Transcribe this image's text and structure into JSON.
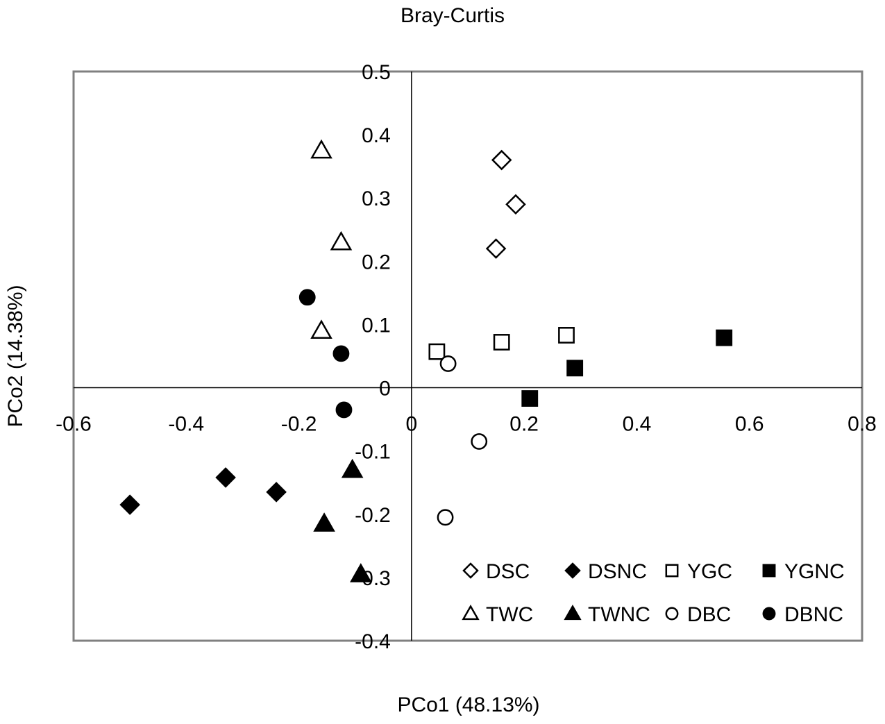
{
  "chart_data": {
    "type": "scatter",
    "title": "Bray-Curtis",
    "xlabel": "PCo1 (48.13%)",
    "ylabel": "PCo2 (14.38%)",
    "xlim": [
      -0.6,
      0.8
    ],
    "ylim": [
      -0.4,
      0.5
    ],
    "xticks": [
      -0.6,
      -0.4,
      -0.2,
      0,
      0.2,
      0.4,
      0.6,
      0.8
    ],
    "xtick_labels": [
      "-0.6",
      "-0.4",
      "-0.2",
      "0",
      "0.2",
      "0.4",
      "0.6",
      "0.8"
    ],
    "yticks": [
      0.5,
      0.4,
      0.3,
      0.2,
      0.1,
      0,
      -0.1,
      -0.2,
      -0.3,
      -0.4
    ],
    "ytick_labels": [
      "0.5",
      "0.4",
      "0.3",
      "0.2",
      "0.1",
      "0",
      "-0.1",
      "-0.2",
      "-0.3",
      "-0.4"
    ],
    "grid": false,
    "legend_position": "bottom-right",
    "series": [
      {
        "name": "DSC",
        "marker": "diamond",
        "filled": false,
        "points": [
          [
            0.16,
            0.36
          ],
          [
            0.185,
            0.29
          ],
          [
            0.15,
            0.22
          ]
        ]
      },
      {
        "name": "DSNC",
        "marker": "diamond",
        "filled": true,
        "points": [
          [
            -0.5,
            -0.185
          ],
          [
            -0.33,
            -0.142
          ],
          [
            -0.24,
            -0.165
          ]
        ]
      },
      {
        "name": "YGC",
        "marker": "square",
        "filled": false,
        "points": [
          [
            0.045,
            0.057
          ],
          [
            0.16,
            0.072
          ],
          [
            0.275,
            0.083
          ]
        ]
      },
      {
        "name": "YGNC",
        "marker": "square",
        "filled": true,
        "points": [
          [
            0.555,
            0.079
          ],
          [
            0.29,
            0.031
          ],
          [
            0.21,
            -0.017
          ]
        ]
      },
      {
        "name": "TWC",
        "marker": "triangle",
        "filled": false,
        "points": [
          [
            -0.16,
            0.375
          ],
          [
            -0.125,
            0.23
          ],
          [
            -0.16,
            0.09
          ]
        ]
      },
      {
        "name": "TWNC",
        "marker": "triangle",
        "filled": true,
        "points": [
          [
            -0.105,
            -0.13
          ],
          [
            -0.155,
            -0.215
          ],
          [
            -0.09,
            -0.295
          ]
        ]
      },
      {
        "name": "DBC",
        "marker": "circle",
        "filled": false,
        "points": [
          [
            0.065,
            0.038
          ],
          [
            0.12,
            -0.085
          ],
          [
            0.06,
            -0.205
          ]
        ]
      },
      {
        "name": "DBNC",
        "marker": "circle",
        "filled": true,
        "points": [
          [
            -0.185,
            0.143
          ],
          [
            -0.125,
            0.054
          ],
          [
            -0.12,
            -0.035
          ]
        ]
      }
    ]
  }
}
